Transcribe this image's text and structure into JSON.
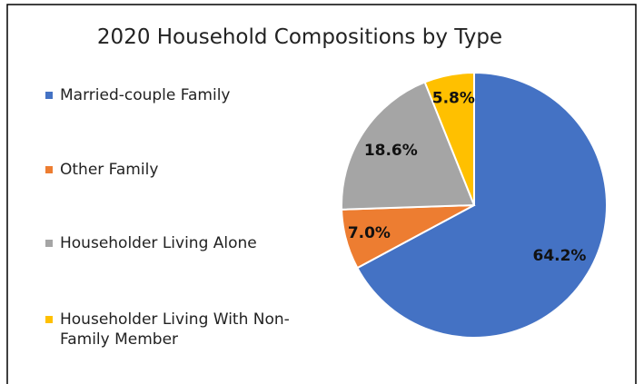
{
  "chart_data": {
    "type": "pie",
    "title": "2020 Household Compositions by Type",
    "categories": [
      "Married-couple Family",
      "Other Family",
      "Householder Living Alone",
      "Householder Living With Non-Family Member"
    ],
    "values": [
      64.2,
      7.0,
      18.6,
      5.8
    ],
    "value_labels": [
      "64.2%",
      "7.0%",
      "18.6%",
      "5.8%"
    ],
    "colors": [
      "#4472c4",
      "#ed7d31",
      "#a5a5a5",
      "#ffc000"
    ],
    "legend": "left"
  }
}
